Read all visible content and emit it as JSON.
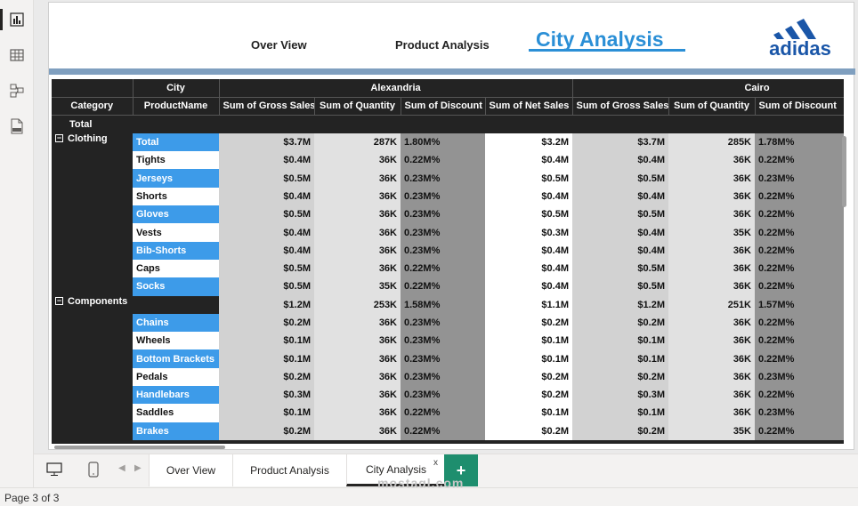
{
  "nav": {
    "overview": "Over View",
    "product": "Product Analysis",
    "city": "City Analysis",
    "logo_text": "adidas"
  },
  "matrix": {
    "headers": {
      "category": "Category",
      "product": "ProductName",
      "city": "City",
      "city1": "Alexandria",
      "city2": "Cairo",
      "m_gross": "Sum of Gross Sales",
      "m_qty": "Sum of Quantity",
      "m_disc": "Sum of Discount",
      "m_net": "Sum of Net Sales"
    },
    "total_label": "Total",
    "groups": [
      {
        "category": "Clothing",
        "rows": [
          {
            "product": "Total",
            "hl": true,
            "a_gross": "$3.7M",
            "a_qty": "287K",
            "a_disc": "1.80M%",
            "a_net": "$3.2M",
            "c_gross": "$3.7M",
            "c_qty": "285K",
            "c_disc": "1.78M%"
          },
          {
            "product": "Tights",
            "hl": false,
            "a_gross": "$0.4M",
            "a_qty": "36K",
            "a_disc": "0.22M%",
            "a_net": "$0.4M",
            "c_gross": "$0.4M",
            "c_qty": "36K",
            "c_disc": "0.22M%"
          },
          {
            "product": "Jerseys",
            "hl": true,
            "a_gross": "$0.5M",
            "a_qty": "36K",
            "a_disc": "0.23M%",
            "a_net": "$0.5M",
            "c_gross": "$0.5M",
            "c_qty": "36K",
            "c_disc": "0.23M%"
          },
          {
            "product": "Shorts",
            "hl": false,
            "a_gross": "$0.4M",
            "a_qty": "36K",
            "a_disc": "0.23M%",
            "a_net": "$0.4M",
            "c_gross": "$0.4M",
            "c_qty": "36K",
            "c_disc": "0.22M%"
          },
          {
            "product": "Gloves",
            "hl": true,
            "a_gross": "$0.5M",
            "a_qty": "36K",
            "a_disc": "0.23M%",
            "a_net": "$0.5M",
            "c_gross": "$0.5M",
            "c_qty": "36K",
            "c_disc": "0.22M%"
          },
          {
            "product": "Vests",
            "hl": false,
            "a_gross": "$0.4M",
            "a_qty": "36K",
            "a_disc": "0.23M%",
            "a_net": "$0.3M",
            "c_gross": "$0.4M",
            "c_qty": "35K",
            "c_disc": "0.22M%"
          },
          {
            "product": "Bib-Shorts",
            "hl": true,
            "a_gross": "$0.4M",
            "a_qty": "36K",
            "a_disc": "0.23M%",
            "a_net": "$0.4M",
            "c_gross": "$0.4M",
            "c_qty": "36K",
            "c_disc": "0.22M%"
          },
          {
            "product": "Caps",
            "hl": false,
            "a_gross": "$0.5M",
            "a_qty": "36K",
            "a_disc": "0.22M%",
            "a_net": "$0.4M",
            "c_gross": "$0.5M",
            "c_qty": "36K",
            "c_disc": "0.22M%"
          },
          {
            "product": "Socks",
            "hl": true,
            "a_gross": "$0.5M",
            "a_qty": "35K",
            "a_disc": "0.22M%",
            "a_net": "$0.4M",
            "c_gross": "$0.5M",
            "c_qty": "36K",
            "c_disc": "0.22M%"
          }
        ]
      },
      {
        "category": "Components",
        "rows": [
          {
            "product": "",
            "hl": false,
            "a_gross": "$1.2M",
            "a_qty": "253K",
            "a_disc": "1.58M%",
            "a_net": "$1.1M",
            "c_gross": "$1.2M",
            "c_qty": "251K",
            "c_disc": "1.57M%"
          },
          {
            "product": "Chains",
            "hl": true,
            "a_gross": "$0.2M",
            "a_qty": "36K",
            "a_disc": "0.23M%",
            "a_net": "$0.2M",
            "c_gross": "$0.2M",
            "c_qty": "36K",
            "c_disc": "0.22M%"
          },
          {
            "product": "Wheels",
            "hl": false,
            "a_gross": "$0.1M",
            "a_qty": "36K",
            "a_disc": "0.23M%",
            "a_net": "$0.1M",
            "c_gross": "$0.1M",
            "c_qty": "36K",
            "c_disc": "0.22M%"
          },
          {
            "product": "Bottom Brackets",
            "hl": true,
            "a_gross": "$0.1M",
            "a_qty": "36K",
            "a_disc": "0.23M%",
            "a_net": "$0.1M",
            "c_gross": "$0.1M",
            "c_qty": "36K",
            "c_disc": "0.22M%"
          },
          {
            "product": "Pedals",
            "hl": false,
            "a_gross": "$0.2M",
            "a_qty": "36K",
            "a_disc": "0.23M%",
            "a_net": "$0.2M",
            "c_gross": "$0.2M",
            "c_qty": "36K",
            "c_disc": "0.23M%"
          },
          {
            "product": "Handlebars",
            "hl": true,
            "a_gross": "$0.3M",
            "a_qty": "36K",
            "a_disc": "0.23M%",
            "a_net": "$0.2M",
            "c_gross": "$0.3M",
            "c_qty": "36K",
            "c_disc": "0.22M%"
          },
          {
            "product": "Saddles",
            "hl": false,
            "a_gross": "$0.1M",
            "a_qty": "36K",
            "a_disc": "0.22M%",
            "a_net": "$0.1M",
            "c_gross": "$0.1M",
            "c_qty": "36K",
            "c_disc": "0.23M%"
          },
          {
            "product": "Brakes",
            "hl": true,
            "a_gross": "$0.2M",
            "a_qty": "36K",
            "a_disc": "0.22M%",
            "a_net": "$0.2M",
            "c_gross": "$0.2M",
            "c_qty": "35K",
            "c_disc": "0.22M%"
          }
        ]
      }
    ]
  },
  "tabs": [
    {
      "label": "Over View",
      "active": false
    },
    {
      "label": "Product Analysis",
      "active": false
    },
    {
      "label": "City Analysis",
      "active": true
    }
  ],
  "tab_close": "x",
  "add_page": "+",
  "watermark": "mostaql.com",
  "status": {
    "page": "Page 3 of 3"
  }
}
